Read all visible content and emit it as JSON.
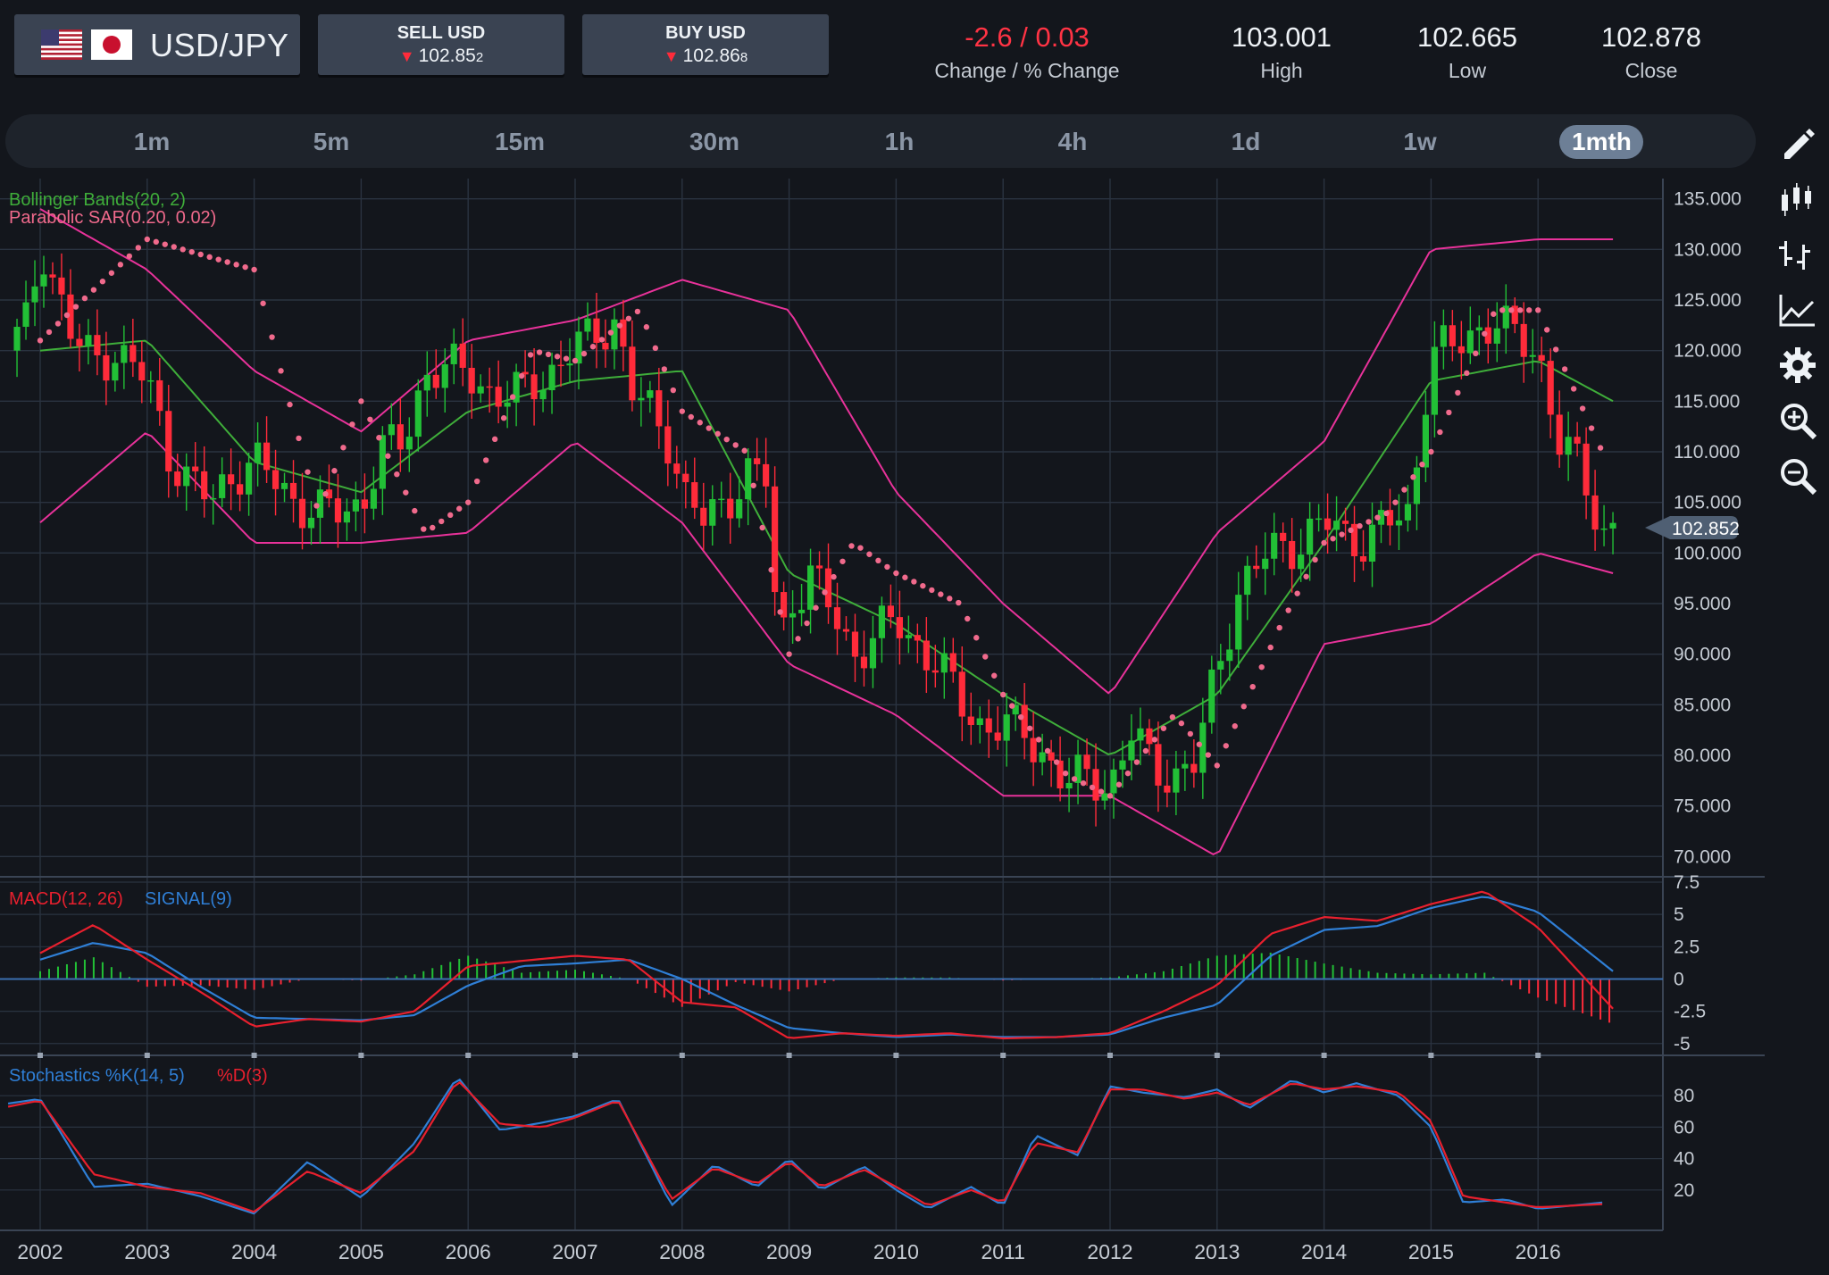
{
  "header": {
    "pair": "USD/JPY",
    "flags": [
      "us-flag-icon",
      "jp-flag-icon"
    ],
    "sell": {
      "label": "SELL USD",
      "price_main": "102.85",
      "price_small": "2",
      "direction": "down"
    },
    "buy": {
      "label": "BUY USD",
      "price_main": "102.86",
      "price_small": "8",
      "direction": "down"
    },
    "stats": [
      {
        "value": "-2.6 / 0.03",
        "label": "Change / % Change",
        "color": "#ff3344"
      },
      {
        "value": "103.001",
        "label": "High"
      },
      {
        "value": "102.665",
        "label": "Low"
      },
      {
        "value": "102.878",
        "label": "Close"
      }
    ]
  },
  "timeframes": [
    "1m",
    "5m",
    "15m",
    "30m",
    "1h",
    "4h",
    "1d",
    "1w",
    "1mth"
  ],
  "active_timeframe": "1mth",
  "tools": [
    "pencil-icon",
    "candlestick-icon",
    "ohlc-bars-icon",
    "line-chart-icon",
    "gear-icon",
    "zoom-in-icon",
    "zoom-out-icon"
  ],
  "colors": {
    "background": "#13161c",
    "grid": "#2a3340",
    "up_candle": "#22c036",
    "down_candle": "#ff2b3a",
    "bollinger_outer": "#e8329a",
    "bollinger_middle": "#3fae3a",
    "sar": "#f06a8c",
    "macd": "#e8202e",
    "signal": "#2f7fd6",
    "stoch_k": "#2f7fd6",
    "stoch_d": "#e8202e"
  },
  "chart_data": [
    {
      "type": "candlestick",
      "indicators": [
        "Bollinger Bands(20, 2)",
        "Parabolic SAR(0.20, 0.02)"
      ],
      "x_labels": [
        "2002",
        "2003",
        "2004",
        "2005",
        "2006",
        "2007",
        "2008",
        "2009",
        "2010",
        "2011",
        "2012",
        "2013",
        "2014",
        "2015",
        "2016"
      ],
      "y_ticks": [
        "135.000",
        "130.000",
        "125.000",
        "120.000",
        "115.000",
        "110.000",
        "105.000",
        "100.000",
        "95.000",
        "90.000",
        "85.000",
        "80.000",
        "75.000",
        "70.000"
      ],
      "ylim": [
        68,
        137
      ],
      "current_price": "102.852",
      "close_series": {
        "x": [
          2001.7,
          2001.9,
          2002.0,
          2002.1,
          2002.3,
          2002.5,
          2002.7,
          2002.9,
          2003.0,
          2003.2,
          2003.4,
          2003.6,
          2003.8,
          2004.0,
          2004.2,
          2004.4,
          2004.6,
          2004.8,
          2005.0,
          2005.2,
          2005.4,
          2005.6,
          2005.8,
          2006.0,
          2006.2,
          2006.4,
          2006.6,
          2006.8,
          2007.0,
          2007.2,
          2007.4,
          2007.5,
          2007.7,
          2007.9,
          2008.0,
          2008.2,
          2008.4,
          2008.6,
          2008.8,
          2008.9,
          2009.0,
          2009.2,
          2009.4,
          2009.6,
          2009.8,
          2010.0,
          2010.2,
          2010.4,
          2010.6,
          2010.8,
          2011.0,
          2011.2,
          2011.4,
          2011.6,
          2011.8,
          2012.0,
          2012.2,
          2012.4,
          2012.6,
          2012.8,
          2013.0,
          2013.2,
          2013.4,
          2013.6,
          2013.8,
          2014.0,
          2014.2,
          2014.4,
          2014.6,
          2014.8,
          2015.0,
          2015.2,
          2015.4,
          2015.6,
          2015.8,
          2016.0,
          2016.2,
          2016.4,
          2016.6,
          2016.7
        ],
        "y": [
          120,
          123,
          131,
          128,
          121,
          119,
          120,
          118,
          117,
          110,
          107,
          105,
          108,
          109,
          107,
          105,
          104,
          104,
          105,
          110,
          111,
          118,
          118,
          118,
          116,
          115,
          117,
          118,
          120,
          122,
          123,
          116,
          114,
          111,
          106,
          103,
          105,
          108,
          107,
          90,
          95,
          98,
          94,
          90,
          92,
          93,
          91,
          89,
          85,
          83,
          83,
          82,
          80,
          77,
          78,
          77,
          82,
          79,
          78,
          79,
          89,
          96,
          99,
          101,
          101,
          103,
          102,
          101,
          103,
          104,
          120,
          120,
          122,
          123,
          121,
          120,
          111,
          108,
          102,
          103
        ]
      },
      "bollinger": {
        "x": [
          2002,
          2003,
          2004,
          2005,
          2006,
          2007,
          2008,
          2009,
          2010,
          2011,
          2012,
          2013,
          2014,
          2015,
          2016,
          2016.7
        ],
        "upper": [
          134,
          128,
          118,
          112,
          121,
          123,
          127,
          124,
          106,
          95,
          86,
          102,
          111,
          130,
          131,
          131
        ],
        "middle": [
          120,
          121,
          109,
          106,
          114,
          117,
          118,
          98,
          93,
          86,
          80,
          86,
          101,
          117,
          119,
          115
        ],
        "lower": [
          103,
          112,
          101,
          101,
          102,
          111,
          103,
          89,
          84,
          76,
          76,
          70,
          91,
          93,
          100,
          98
        ]
      },
      "sar": {
        "x": [
          2002,
          2003,
          2004,
          2004.6,
          2005,
          2005.6,
          2006,
          2006.6,
          2007,
          2007.6,
          2008,
          2008.6,
          2009,
          2009.6,
          2010,
          2010.6,
          2011,
          2011.6,
          2012,
          2012.6,
          2013,
          2013.6,
          2014,
          2014.6,
          2015,
          2015.6,
          2016,
          2016.6
        ],
        "y": [
          121,
          131,
          128,
          104,
          115,
          102,
          105,
          120,
          119,
          124,
          114,
          110,
          90,
          101,
          98,
          95,
          86,
          78,
          76,
          84,
          79,
          93,
          101,
          104,
          110,
          124,
          124,
          110
        ]
      }
    },
    {
      "type": "line",
      "indicators": [
        "MACD(12, 26)",
        "SIGNAL(9)"
      ],
      "y_ticks": [
        "7.5",
        "5",
        "2.5",
        "0",
        "-2.5",
        "-5"
      ],
      "ylim": [
        -5.5,
        7.5
      ],
      "x": [
        2002,
        2002.5,
        2003,
        2003.5,
        2004,
        2004.5,
        2005,
        2005.5,
        2006,
        2006.5,
        2007,
        2007.5,
        2008,
        2008.5,
        2009,
        2009.5,
        2010,
        2010.5,
        2011,
        2011.5,
        2012,
        2012.5,
        2013,
        2013.5,
        2014,
        2014.5,
        2015,
        2015.5,
        2016,
        2016.7
      ],
      "macd": [
        2,
        4.2,
        1.5,
        -1,
        -3.7,
        -3.1,
        -3.3,
        -2.5,
        1,
        1.4,
        1.8,
        1.5,
        -1.8,
        -2.2,
        -4.6,
        -4.2,
        -4.4,
        -4.2,
        -4.6,
        -4.5,
        -4.2,
        -2.5,
        -0.5,
        3.5,
        4.8,
        4.5,
        5.8,
        6.8,
        4,
        -2.3
      ],
      "signal": [
        1.5,
        2.8,
        2,
        -0.6,
        -3,
        -3.1,
        -3.2,
        -2.8,
        -0.5,
        1,
        1.2,
        1.5,
        0,
        -2,
        -3.8,
        -4.2,
        -4.5,
        -4.3,
        -4.5,
        -4.5,
        -4.3,
        -3,
        -2,
        1.8,
        3.8,
        4.1,
        5.5,
        6.4,
        5.2,
        0.6
      ]
    },
    {
      "type": "line",
      "indicators": [
        "Stochastics %K(14, 5)",
        "%D(3)"
      ],
      "y_ticks": [
        "80",
        "60",
        "40",
        "20"
      ],
      "ylim": [
        0,
        100
      ],
      "x": [
        2001.7,
        2002,
        2002.5,
        2003,
        2003.5,
        2004,
        2004.5,
        2005,
        2005.5,
        2005.9,
        2006.3,
        2006.7,
        2007,
        2007.4,
        2007.9,
        2008.3,
        2008.7,
        2009,
        2009.3,
        2009.7,
        2010,
        2010.3,
        2010.7,
        2011,
        2011.3,
        2011.7,
        2012,
        2012.3,
        2012.7,
        2013,
        2013.3,
        2013.7,
        2014,
        2014.3,
        2014.7,
        2015,
        2015.3,
        2015.7,
        2016,
        2016.3,
        2016.6
      ],
      "k": [
        75,
        78,
        22,
        24,
        16,
        5,
        38,
        15,
        50,
        92,
        58,
        63,
        67,
        78,
        10,
        36,
        22,
        40,
        20,
        35,
        20,
        8,
        22,
        10,
        55,
        42,
        86,
        82,
        79,
        84,
        72,
        90,
        82,
        88,
        80,
        60,
        12,
        14,
        8,
        10,
        12
      ],
      "d": [
        73,
        77,
        30,
        22,
        18,
        6,
        32,
        18,
        45,
        90,
        62,
        60,
        66,
        77,
        14,
        34,
        24,
        38,
        22,
        33,
        22,
        10,
        20,
        12,
        50,
        44,
        84,
        84,
        78,
        82,
        74,
        88,
        84,
        86,
        82,
        64,
        16,
        12,
        9,
        10,
        11
      ]
    }
  ]
}
